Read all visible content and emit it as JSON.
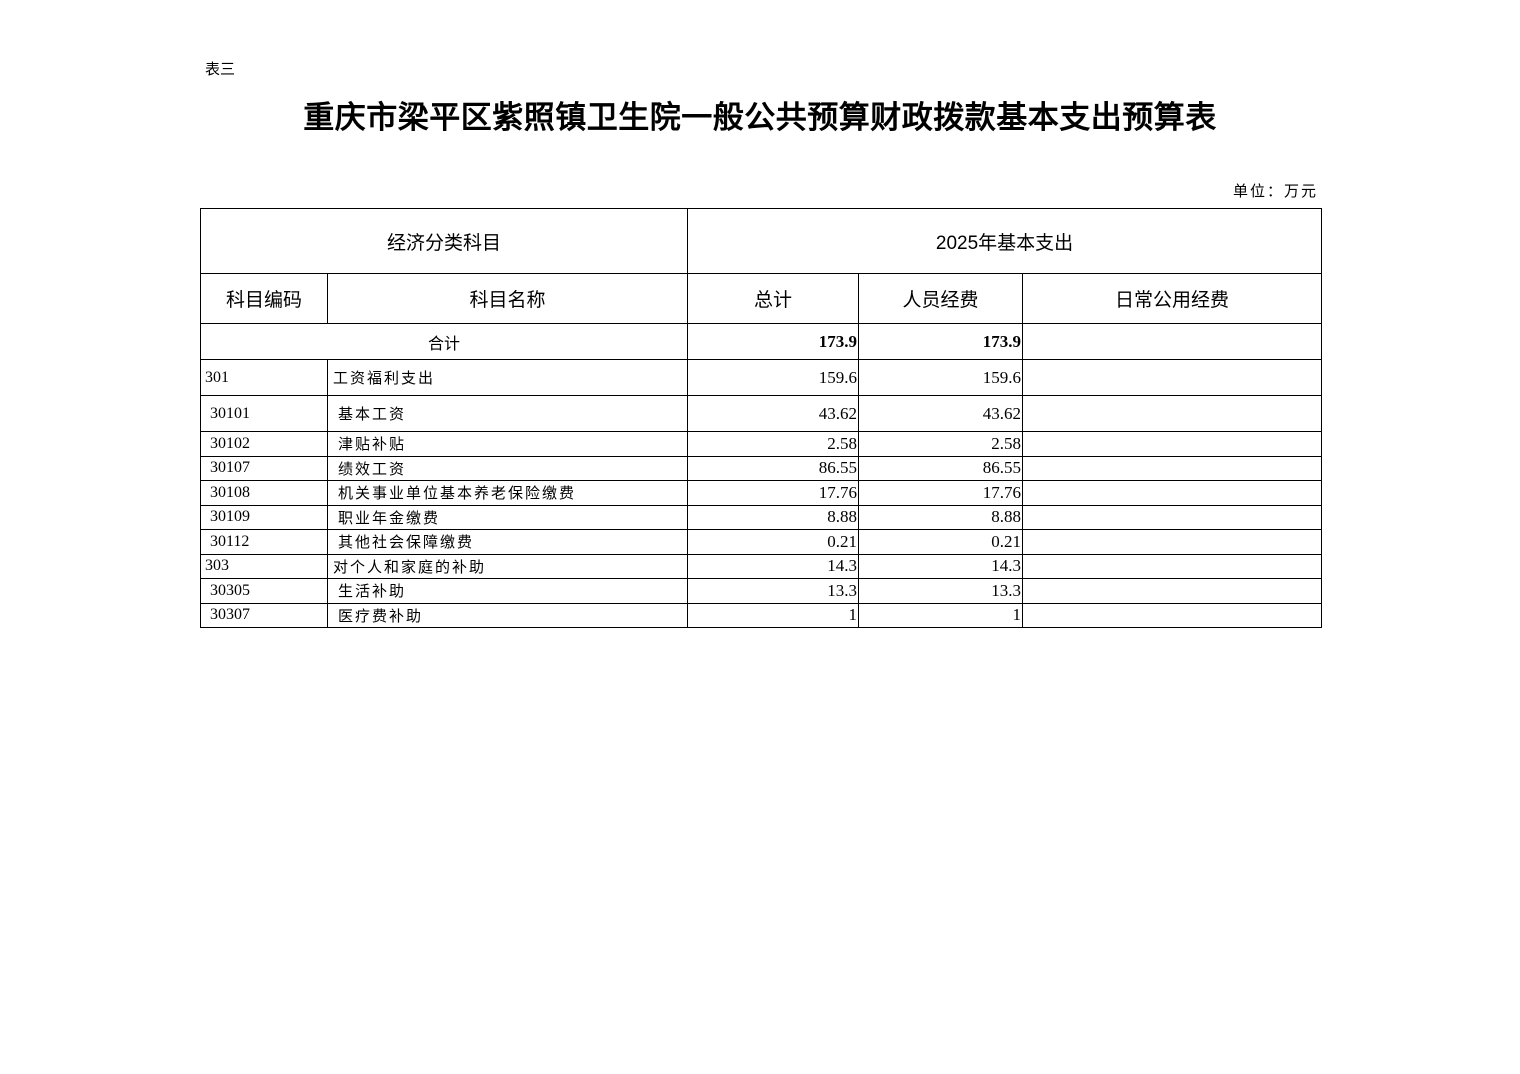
{
  "doc": {
    "label": "表三",
    "title": "重庆市梁平区紫照镇卫生院一般公共预算财政拨款基本支出预算表",
    "unit": "单位：万元"
  },
  "table": {
    "header_group_left": "经济分类科目",
    "header_group_right": "2025年基本支出",
    "columns": [
      "科目编码",
      "科目名称",
      "总计",
      "人员经费",
      "日常公用经费"
    ],
    "total": {
      "label": "合计",
      "total": "173.9",
      "personnel": "173.9",
      "public": ""
    },
    "rows": [
      {
        "code": "301",
        "name": "工资福利支出",
        "total": "159.6",
        "personnel": "159.6",
        "public": "",
        "level": 1
      },
      {
        "code": "30101",
        "name": "基本工资",
        "total": "43.62",
        "personnel": "43.62",
        "public": "",
        "level": 2
      },
      {
        "code": "30102",
        "name": "津贴补贴",
        "total": "2.58",
        "personnel": "2.58",
        "public": "",
        "level": 2
      },
      {
        "code": "30107",
        "name": "绩效工资",
        "total": "86.55",
        "personnel": "86.55",
        "public": "",
        "level": 2
      },
      {
        "code": "30108",
        "name": "机关事业单位基本养老保险缴费",
        "total": "17.76",
        "personnel": "17.76",
        "public": "",
        "level": 2
      },
      {
        "code": "30109",
        "name": "职业年金缴费",
        "total": "8.88",
        "personnel": "8.88",
        "public": "",
        "level": 2
      },
      {
        "code": "30112",
        "name": "其他社会保障缴费",
        "total": "0.21",
        "personnel": "0.21",
        "public": "",
        "level": 2
      },
      {
        "code": "303",
        "name": "对个人和家庭的补助",
        "total": "14.3",
        "personnel": "14.3",
        "public": "",
        "level": 1
      },
      {
        "code": "30305",
        "name": "生活补助",
        "total": "13.3",
        "personnel": "13.3",
        "public": "",
        "level": 2
      },
      {
        "code": "30307",
        "name": "医疗费补助",
        "total": "1",
        "personnel": "1",
        "public": "",
        "level": 2
      }
    ]
  }
}
